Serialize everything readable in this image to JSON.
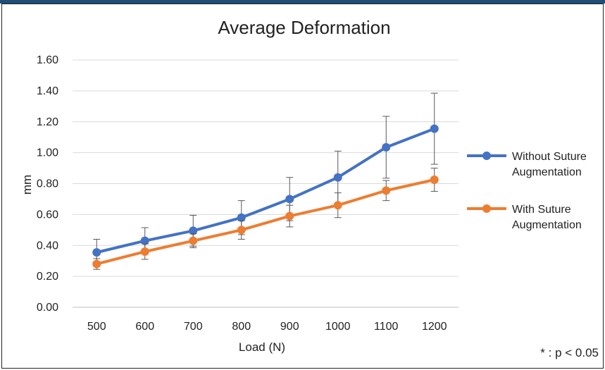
{
  "chart_data": {
    "type": "line",
    "title": "Average Deformation",
    "xlabel": "Load (N)",
    "ylabel": "mm",
    "categories": [
      "500",
      "600",
      "700",
      "800",
      "900",
      "1000",
      "1100",
      "1200"
    ],
    "ylim": [
      0,
      1.6
    ],
    "yticks": [
      "0.00",
      "0.20",
      "0.40",
      "0.60",
      "0.80",
      "1.00",
      "1.20",
      "1.40",
      "1.60"
    ],
    "grid": true,
    "legend_position": "right",
    "series": [
      {
        "name": "Without Suture Augmentation",
        "legend_lines": [
          "Without Suture",
          "Augmentation"
        ],
        "color": "#4472c4",
        "values": [
          0.355,
          0.43,
          0.495,
          0.58,
          0.7,
          0.84,
          1.035,
          1.155
        ],
        "error": [
          0.085,
          0.085,
          0.1,
          0.11,
          0.14,
          0.17,
          0.2,
          0.23
        ]
      },
      {
        "name": "With Suture Augmentation",
        "legend_lines": [
          "With Suture",
          "Augmentation"
        ],
        "color": "#ed7d31",
        "values": [
          0.28,
          0.36,
          0.43,
          0.5,
          0.59,
          0.66,
          0.755,
          0.825
        ],
        "error": [
          0.035,
          0.05,
          0.045,
          0.06,
          0.07,
          0.08,
          0.065,
          0.075
        ]
      }
    ],
    "annotation": "* : p < 0.05"
  }
}
